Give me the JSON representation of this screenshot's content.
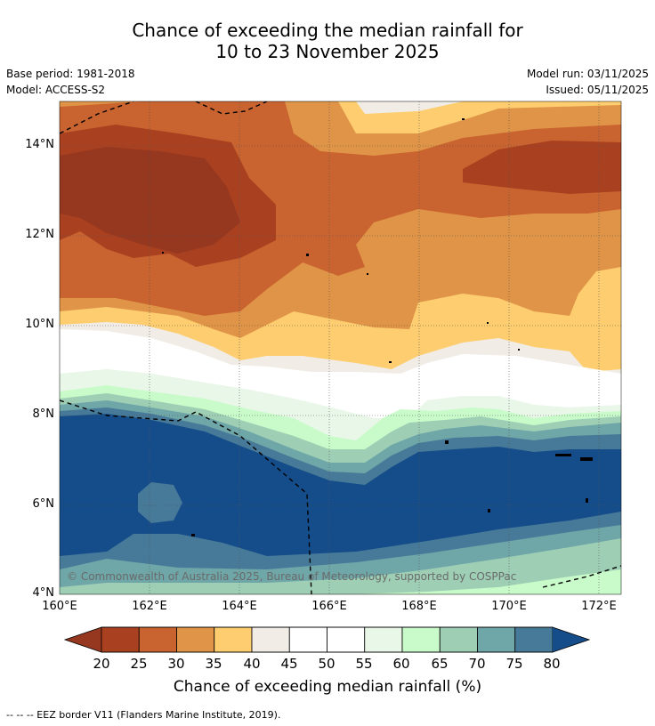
{
  "title": {
    "line1": "Chance of exceeding the median rainfall for",
    "line2": "10 to 23 November 2025"
  },
  "meta": {
    "base_period": "Base period: 1981-2018",
    "model": "Model: ACCESS-S2",
    "model_run": "Model run: 03/11/2025",
    "issued": "Issued: 05/11/2025"
  },
  "map": {
    "lat_labels": [
      "14°N",
      "12°N",
      "10°N",
      "8°N",
      "6°N",
      "4°N"
    ],
    "lon_labels": [
      "160°E",
      "162°E",
      "164°E",
      "166°E",
      "168°E",
      "170°E",
      "172°E"
    ],
    "copyright": "© Commonwealth of Australia 2025, Bureau of Meteorology, supported by COSPPac"
  },
  "colorbar": {
    "ticks": [
      "20",
      "25",
      "30",
      "35",
      "40",
      "45",
      "50",
      "55",
      "60",
      "65",
      "70",
      "75",
      "80"
    ],
    "colors": [
      "#a9401f",
      "#c9632f",
      "#e09447",
      "#fdcd6f",
      "#f1ede6",
      "#ffffff",
      "#ffffff",
      "#e9f7e8",
      "#c8fbc9",
      "#9ecfb5",
      "#6fa6a8",
      "#477a98"
    ],
    "low_color": "#963820",
    "high_color": "#154d8a",
    "title": "Chance of exceeding median rainfall (%)"
  },
  "footnote": "--  --  -- EEZ border V11 (Flanders Marine Institute, 2019)."
}
